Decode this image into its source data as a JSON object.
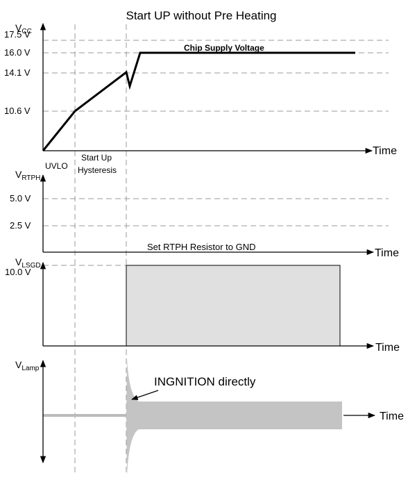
{
  "title": "Start UP without Pre Heating",
  "panels": [
    {
      "axis_label": {
        "main": "V",
        "sub": "CC"
      },
      "ticks": [
        "17.5 V",
        "16.0 V",
        "14.1 V",
        "10.6 V"
      ],
      "x_label": "Time",
      "annotation": "Chip Supply  Voltage",
      "phases": [
        "UVLO",
        "Start Up",
        "Hysteresis"
      ]
    },
    {
      "axis_label": {
        "main": "V",
        "sub": "RTPH"
      },
      "ticks": [
        "5.0 V",
        "2.5 V"
      ],
      "x_label": "Time",
      "annotation": "Set RTPH Resistor to GND"
    },
    {
      "axis_label": {
        "main": "V",
        "sub": "LSGD"
      },
      "ticks": [
        "10.0 V"
      ],
      "x_label": "Time"
    },
    {
      "axis_label": {
        "main": "V",
        "sub": "Lamp"
      },
      "x_label": "Time",
      "annotation": "INGNITION directly"
    }
  ]
}
